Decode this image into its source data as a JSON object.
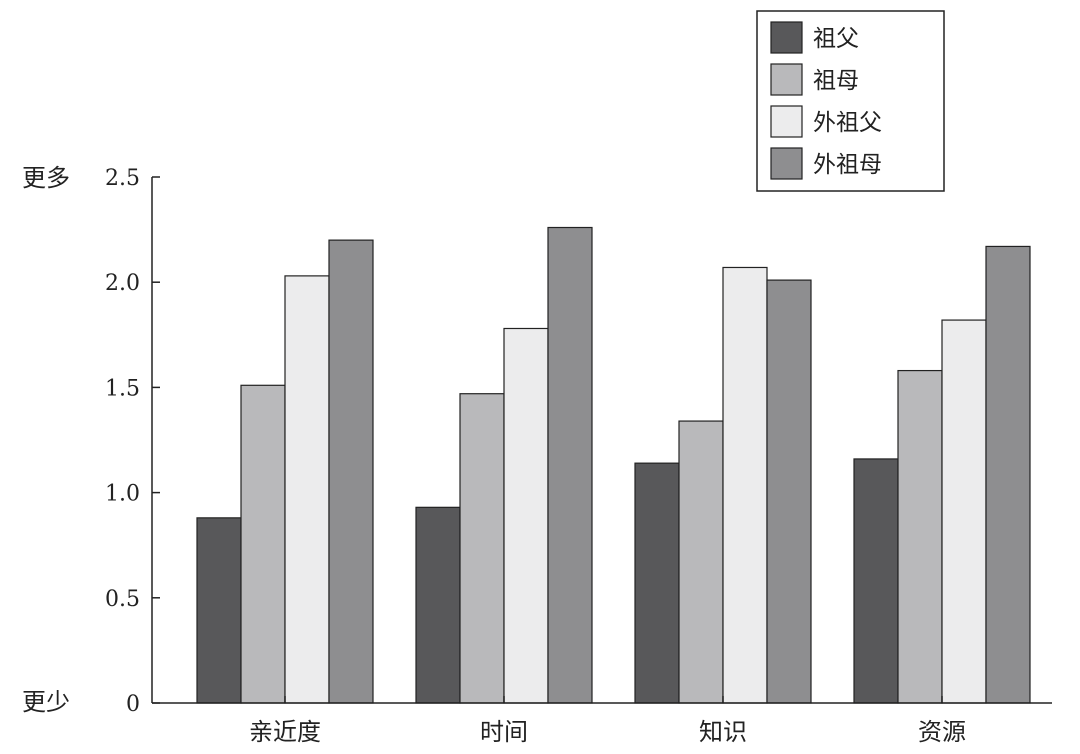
{
  "chart_data": {
    "type": "bar",
    "title": "",
    "xlabel": "",
    "ylabel": "",
    "y_top_label": "更多",
    "y_bottom_label": "更少",
    "categories": [
      "亲近度",
      "时间",
      "知识",
      "资源"
    ],
    "ylim": [
      0,
      2.5
    ],
    "yticks": [
      0,
      0.5,
      1.0,
      1.5,
      2.0,
      2.5
    ],
    "ytick_labels": [
      "0",
      "0.5",
      "1.0",
      "1.5",
      "2.0",
      "2.5"
    ],
    "grid": false,
    "legend_position": "top-right",
    "series": [
      {
        "name": "祖父",
        "color": "#58585a",
        "values": [
          0.88,
          0.93,
          1.14,
          1.16
        ]
      },
      {
        "name": "祖母",
        "color": "#b9b9bb",
        "values": [
          1.51,
          1.47,
          1.34,
          1.58
        ]
      },
      {
        "name": "外祖父",
        "color": "#ececed",
        "values": [
          2.03,
          1.78,
          2.07,
          1.82
        ]
      },
      {
        "name": "外祖母",
        "color": "#8e8e90",
        "values": [
          2.2,
          2.26,
          2.01,
          2.17
        ]
      }
    ]
  }
}
